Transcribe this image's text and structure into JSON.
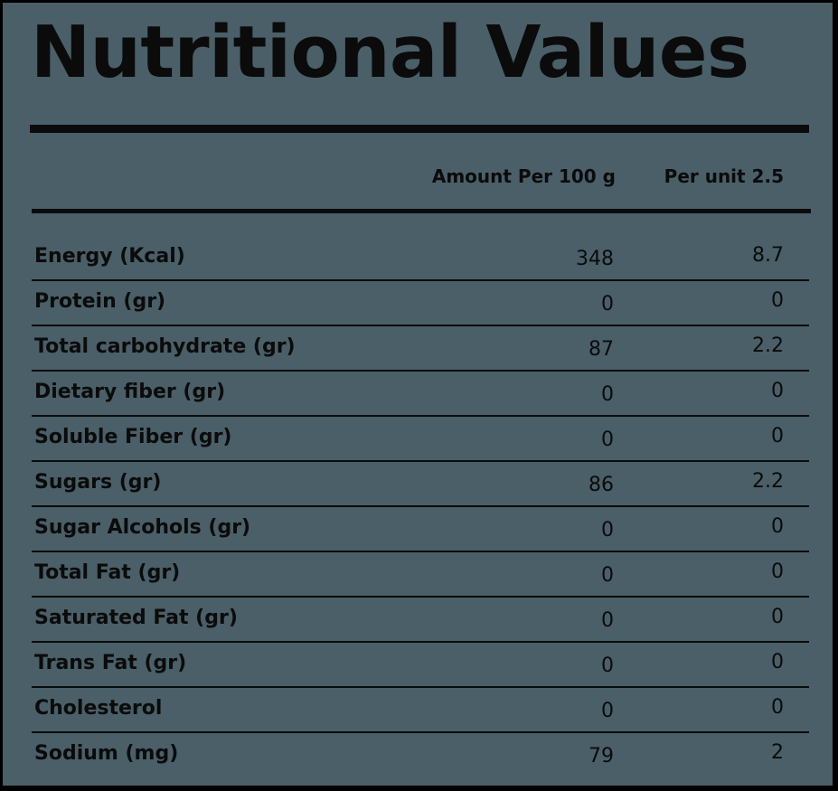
{
  "title": "Nutritional Values",
  "headers": {
    "amount_per_100g": "Amount Per 100 g",
    "per_unit": "Per unit 2.5"
  },
  "colors": {
    "background": "#4a5f68",
    "frame": "#000000",
    "text": "#0b0b0b"
  },
  "rows": [
    {
      "label": "Energy (Kcal)",
      "per_100g": "348",
      "per_unit": "8.7"
    },
    {
      "label": "Protein (gr)",
      "per_100g": "0",
      "per_unit": "0"
    },
    {
      "label": "Total carbohydrate (gr)",
      "per_100g": "87",
      "per_unit": "2.2"
    },
    {
      "label": "Dietary fiber (gr)",
      "per_100g": "0",
      "per_unit": "0"
    },
    {
      "label": "Soluble Fiber (gr)",
      "per_100g": "0",
      "per_unit": "0"
    },
    {
      "label": "Sugars (gr)",
      "per_100g": "86",
      "per_unit": "2.2"
    },
    {
      "label": "Sugar Alcohols (gr)",
      "per_100g": "0",
      "per_unit": "0"
    },
    {
      "label": "Total Fat (gr)",
      "per_100g": "0",
      "per_unit": "0"
    },
    {
      "label": "Saturated Fat (gr)",
      "per_100g": "0",
      "per_unit": "0"
    },
    {
      "label": "Trans Fat (gr)",
      "per_100g": "0",
      "per_unit": "0"
    },
    {
      "label": "Cholesterol",
      "per_100g": "0",
      "per_unit": "0"
    },
    {
      "label": "Sodium (mg)",
      "per_100g": "79",
      "per_unit": "2"
    }
  ]
}
